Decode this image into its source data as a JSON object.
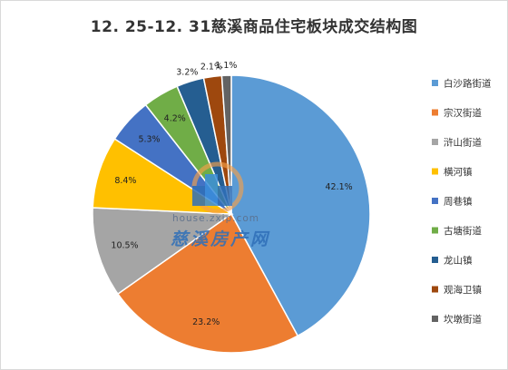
{
  "chart_data": {
    "type": "pie",
    "title": "12. 25-12. 31慈溪商品住宅板块成交结构图",
    "start_angle": "12 o'clock",
    "direction": "clockwise",
    "legend_position": "right",
    "series": [
      {
        "name": "白沙路街道",
        "value": 42.1,
        "label": "42.1%",
        "color": "#5b9bd5"
      },
      {
        "name": "宗汉街道",
        "value": 23.2,
        "label": "23.2%",
        "color": "#ed7d31"
      },
      {
        "name": "浒山街道",
        "value": 10.5,
        "label": "10.5%",
        "color": "#a5a5a5"
      },
      {
        "name": "横河镇",
        "value": 8.4,
        "label": "8.4%",
        "color": "#ffc000"
      },
      {
        "name": "周巷镇",
        "value": 5.3,
        "label": "5.3%",
        "color": "#4472c4"
      },
      {
        "name": "古塘街道",
        "value": 4.2,
        "label": "4.2%",
        "color": "#70ad47"
      },
      {
        "name": "龙山镇",
        "value": 3.2,
        "label": "3.2%",
        "color": "#255e91"
      },
      {
        "name": "观海卫镇",
        "value": 2.1,
        "label": "2.1%",
        "color": "#9e480e"
      },
      {
        "name": "坎墩街道",
        "value": 1.1,
        "label": "1.1%",
        "color": "#636363"
      }
    ]
  },
  "watermark": {
    "url": "house.zxip.com",
    "name": "慈溪房产网",
    "logo_colors": {
      "ring": "#f5a04a",
      "block": "#2f6fb8",
      "building": "#3a8edb"
    }
  }
}
